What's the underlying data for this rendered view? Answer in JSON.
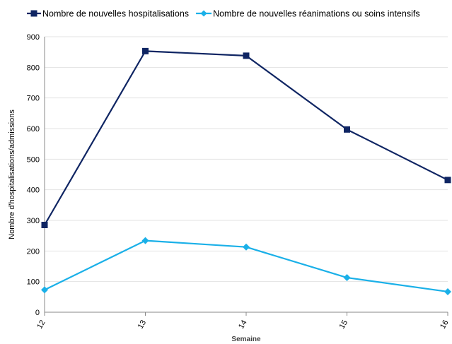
{
  "chart_data": {
    "type": "line",
    "title": "",
    "xlabel": "Semaine",
    "ylabel": "Nombre d'hospitalisations/admissions",
    "x": [
      "12",
      "13",
      "14",
      "15",
      "16"
    ],
    "ylim": [
      0,
      900
    ],
    "yticks": [
      "0",
      "100",
      "200",
      "300",
      "400",
      "500",
      "600",
      "700",
      "800",
      "900"
    ],
    "grid": true,
    "legend_position": "top",
    "series": [
      {
        "name": "Nombre de nouvelles hospitalisations",
        "values": [
          285,
          853,
          838,
          597,
          432
        ],
        "color": "#0f2563",
        "marker": "square"
      },
      {
        "name": "Nombre de nouvelles réanimations ou soins intensifs",
        "values": [
          73,
          234,
          213,
          113,
          67
        ],
        "color": "#1ab0e8",
        "marker": "diamond"
      }
    ]
  }
}
